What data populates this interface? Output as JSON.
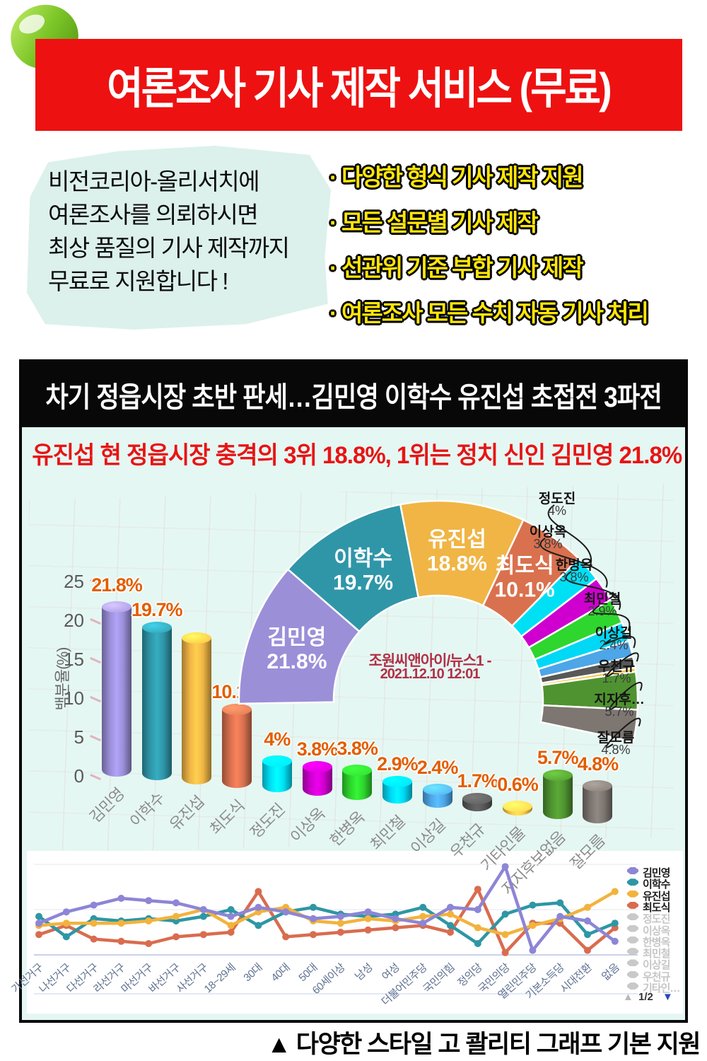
{
  "theme": {
    "banner_red": "#ee1111",
    "bullet_yellow": "#ffe60a",
    "headline_red": "#e81414",
    "panel_bg": "#e5f7f3",
    "source_text": "#b03046",
    "bar_value_label": "#e25e00"
  },
  "header": {
    "banner_title": "여론조사 기사 제작 서비스 (무료)",
    "bubble_lines": [
      "비전코리아-올리서치에",
      "여론조사를 의뢰하시면",
      "최상 품질의 기사 제작까지",
      "무료로 지원합니다 !"
    ],
    "bullet_prefix": "·",
    "bullets": [
      "다양한 형식 기사 제작 지원",
      "모든 설문별 기사 제작",
      "선관위 기준 부합 기사 제작",
      "여론조사 모든 수치 자동 기사 처리"
    ]
  },
  "article": {
    "headline": "차기 정읍시장 초반 판세…김민영 이학수 유진섭 초접전 3파전",
    "subheadline": "유진섭 현 정읍시장 충격의 3위 18.8%, 1위는 정치 신인 김민영 21.8%"
  },
  "chart_data": [
    {
      "type": "pie",
      "shape": "half-donut",
      "labels": [
        "김민영",
        "이학수",
        "유진섭",
        "최도식",
        "정도진",
        "이상옥",
        "한병옥",
        "최민철",
        "이상길",
        "우천규",
        "기타인물",
        "지지후보없음",
        "잘모름"
      ],
      "values": [
        21.8,
        19.7,
        18.8,
        10.1,
        4,
        3.8,
        3.8,
        2.9,
        2.4,
        1.7,
        0.6,
        5.7,
        4.8
      ],
      "value_labels": [
        "21.8%",
        "19.7%",
        "18.8%",
        "10.1%",
        "4%",
        "3.8%",
        "3.8%",
        "2.9%",
        "2.4%",
        "1.7%",
        "0.6%",
        "5.7%",
        "4.8%"
      ],
      "colors": [
        "#9b8fd8",
        "#2f96a8",
        "#f0b545",
        "#d9714f",
        "#00e0f5",
        "#cf00cf",
        "#2ed62e",
        "#00d8f5",
        "#4da6e8",
        "#585858",
        "#f7c84b",
        "#4f9330",
        "#7d7671"
      ],
      "inner_labels": [
        0,
        1,
        2,
        3
      ],
      "callouts": [
        {
          "index": 4,
          "label": "정도진",
          "value": "4%"
        },
        {
          "index": 5,
          "label": "이상옥",
          "value": "3.8%"
        },
        {
          "index": 6,
          "label": "한병옥",
          "value": "3.8%"
        },
        {
          "index": 7,
          "label": "최민철",
          "value": "2.9%"
        },
        {
          "index": 8,
          "label": "이상길",
          "value": "2.4%"
        },
        {
          "index": 9,
          "label": "우천규",
          "value": "1.7%"
        },
        {
          "index": 11,
          "label": "지지후…",
          "value": "5.7%"
        },
        {
          "index": 12,
          "label": "잘모름",
          "value": "4.8%"
        }
      ],
      "center_text": [
        "조원씨앤아이/뉴스1 -",
        "2021.12.10 12:01"
      ]
    },
    {
      "type": "bar",
      "style": "3d-cylinder",
      "categories": [
        "김민영",
        "이학수",
        "유진섭",
        "최도식",
        "정도진",
        "이상옥",
        "한병옥",
        "최민철",
        "이상길",
        "우천규",
        "기타인물",
        "지지후보없음",
        "잘모름"
      ],
      "values": [
        21.8,
        19.7,
        18.8,
        10.1,
        4,
        3.8,
        3.8,
        2.9,
        2.4,
        1.7,
        0.6,
        5.7,
        4.8
      ],
      "value_labels": [
        "21.8%",
        "19.7%",
        "18.8%",
        "10.1%",
        "4%",
        "3.8%",
        "3.8%",
        "2.9%",
        "2.4%",
        "1.7%",
        "0.6%",
        "5.7%",
        "4.8%"
      ],
      "colors": [
        "#9b8fd8",
        "#2f96a8",
        "#f0b545",
        "#d9714f",
        "#00e0f5",
        "#cf00cf",
        "#2ed62e",
        "#00d8f5",
        "#4da6e8",
        "#585858",
        "#f7c84b",
        "#4f9330",
        "#7d7671"
      ],
      "ylabel": "백분율(%)",
      "yticks": [
        0,
        5,
        10,
        15,
        20,
        25
      ],
      "ylim": [
        0,
        25
      ]
    },
    {
      "type": "line",
      "categories": [
        "가선거구",
        "나선거구",
        "다선거구",
        "라선거구",
        "마선거구",
        "바선거구",
        "사선거구",
        "18~29세",
        "30대",
        "40대",
        "50대",
        "60세이상",
        "남성",
        "여성",
        "더불어민주당",
        "국민의힘",
        "정의당",
        "국민의당",
        "열린민주당",
        "기본소득당",
        "시대전환",
        "없음"
      ],
      "ylim": [
        0,
        40
      ],
      "series": [
        {
          "name": "김민영",
          "color": "#8d85d6",
          "values": [
            14,
            19,
            22,
            25,
            24,
            23,
            20,
            17,
            21,
            19,
            16,
            17,
            19,
            16,
            14,
            21,
            20,
            39,
            2,
            17,
            15,
            6
          ]
        },
        {
          "name": "이학수",
          "color": "#2e96a4",
          "values": [
            17,
            8,
            16,
            15,
            16,
            15,
            17,
            20,
            13,
            19,
            21,
            18,
            17,
            18,
            21,
            13,
            5,
            18,
            22,
            23,
            9,
            14
          ]
        },
        {
          "name": "유진섭",
          "color": "#f2b33d",
          "values": [
            13,
            14,
            14,
            14,
            15,
            17,
            20,
            13,
            19,
            21,
            15,
            14,
            16,
            15,
            17,
            18,
            12,
            9,
            13,
            16,
            21,
            28
          ]
        },
        {
          "name": "최도식",
          "color": "#d96c4f",
          "values": [
            9,
            13,
            7,
            6,
            5,
            8,
            9,
            10,
            28,
            8,
            9,
            10,
            11,
            12,
            13,
            10,
            29,
            1,
            14,
            14,
            2,
            12
          ]
        }
      ],
      "legend": {
        "active": [
          "김민영",
          "이학수",
          "유진섭",
          "최도식"
        ],
        "inactive": [
          "정도진",
          "이상옥",
          "한병옥",
          "최민철",
          "이상길",
          "우천규",
          "기타인…"
        ],
        "page": "1/2",
        "page_up_icon": "▲",
        "page_down_icon": "▼"
      }
    }
  ],
  "footer": {
    "caption": "▲ 다양한 스타일  고 콸리티 그래프 기본 지원"
  }
}
